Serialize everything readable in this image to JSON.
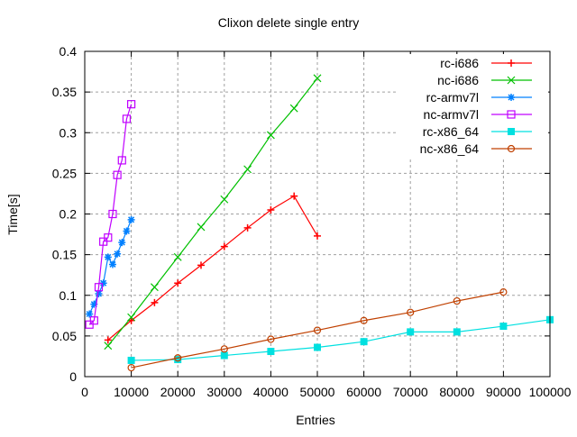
{
  "chart_data": {
    "type": "line",
    "title": "Clixon delete single entry",
    "xlabel": "Entries",
    "ylabel": "Time[s]",
    "xlim": [
      0,
      100000
    ],
    "ylim": [
      0,
      0.4
    ],
    "xticks": [
      "0",
      "10000",
      "20000",
      "30000",
      "40000",
      "50000",
      "60000",
      "70000",
      "80000",
      "90000",
      "100000"
    ],
    "yticks": [
      "0",
      "0.05",
      "0.1",
      "0.15",
      "0.2",
      "0.25",
      "0.3",
      "0.35",
      "0.4"
    ],
    "grid": true,
    "legend_position": "top-right",
    "series": [
      {
        "name": "rc-i686",
        "color": "#ff0000",
        "marker": "plus",
        "x": [
          5000,
          10000,
          15000,
          20000,
          25000,
          30000,
          35000,
          40000,
          45000,
          50000
        ],
        "y": [
          0.045,
          0.069,
          0.091,
          0.115,
          0.137,
          0.16,
          0.183,
          0.205,
          0.222,
          0.173
        ]
      },
      {
        "name": "nc-i686",
        "color": "#00c000",
        "marker": "cross",
        "x": [
          5000,
          10000,
          15000,
          20000,
          25000,
          30000,
          35000,
          40000,
          45000,
          50000
        ],
        "y": [
          0.038,
          0.073,
          0.11,
          0.147,
          0.184,
          0.218,
          0.255,
          0.297,
          0.33,
          0.367
        ]
      },
      {
        "name": "rc-armv7l",
        "color": "#0080ff",
        "marker": "star",
        "x": [
          1000,
          2000,
          3000,
          4000,
          5000,
          6000,
          7000,
          8000,
          9000,
          10000
        ],
        "y": [
          0.077,
          0.089,
          0.102,
          0.115,
          0.147,
          0.138,
          0.151,
          0.165,
          0.179,
          0.193
        ]
      },
      {
        "name": "nc-armv7l",
        "color": "#c000ff",
        "marker": "square",
        "x": [
          1000,
          2000,
          3000,
          4000,
          5000,
          6000,
          7000,
          8000,
          9000,
          10000
        ],
        "y": [
          0.064,
          0.069,
          0.11,
          0.166,
          0.171,
          0.2,
          0.248,
          0.266,
          0.317,
          0.335
        ]
      },
      {
        "name": "rc-x86_64",
        "color": "#00e0e0",
        "marker": "filled-square",
        "x": [
          10000,
          20000,
          30000,
          40000,
          50000,
          60000,
          70000,
          80000,
          90000,
          100000
        ],
        "y": [
          0.02,
          0.021,
          0.026,
          0.031,
          0.036,
          0.043,
          0.055,
          0.055,
          0.062,
          0.07
        ]
      },
      {
        "name": "nc-x86_64",
        "color": "#c04000",
        "marker": "circle",
        "x": [
          10000,
          20000,
          30000,
          40000,
          50000,
          60000,
          70000,
          80000,
          90000
        ],
        "y": [
          0.011,
          0.023,
          0.034,
          0.046,
          0.057,
          0.069,
          0.079,
          0.093,
          0.104
        ]
      }
    ]
  }
}
